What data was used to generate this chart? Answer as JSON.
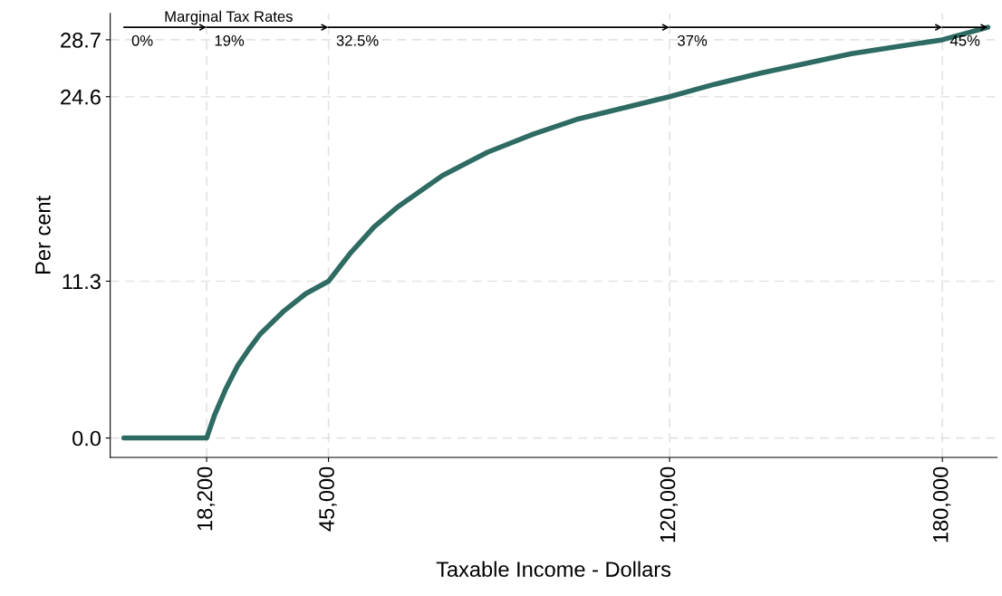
{
  "chart_data": {
    "type": "line",
    "xlabel": "Taxable Income - Dollars",
    "ylabel": "Per cent",
    "x": [
      0,
      18200,
      20000,
      22500,
      25000,
      27500,
      30000,
      35000,
      40000,
      45000,
      50000,
      55000,
      60000,
      70000,
      80000,
      90000,
      100000,
      110000,
      120000,
      130000,
      140000,
      150000,
      160000,
      170000,
      180000,
      190000
    ],
    "series": [
      {
        "color": "#2e6b62",
        "values": [
          0,
          0,
          1.7,
          3.6,
          5.2,
          6.4,
          7.5,
          9.1,
          10.4,
          11.3,
          13.4,
          15.2,
          16.6,
          18.9,
          20.6,
          21.9,
          23.0,
          23.8,
          24.6,
          25.5,
          26.3,
          27.0,
          27.7,
          28.2,
          28.7,
          29.6
        ]
      }
    ],
    "xlim": [
      -3000,
      192000
    ],
    "ylim": [
      -1.4,
      30.6
    ],
    "xticks": [
      {
        "value": 18200,
        "label": "18,200"
      },
      {
        "value": 45000,
        "label": "45,000"
      },
      {
        "value": 120000,
        "label": "120,000"
      },
      {
        "value": 180000,
        "label": "180,000"
      }
    ],
    "yticks": [
      {
        "value": 0,
        "label": "0.0"
      },
      11.3,
      24.6,
      28.7
    ],
    "grid": true,
    "legend": false,
    "marker": "none",
    "line_style": "solid",
    "annotations": [
      "Marginal Tax Rates",
      "0%",
      "19%",
      "32.5%",
      "37%",
      "45%"
    ]
  }
}
